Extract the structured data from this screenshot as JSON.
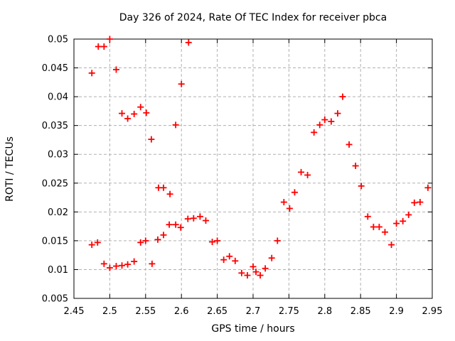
{
  "chart_data": {
    "type": "scatter",
    "title": "Day 326 of 2024, Rate Of TEC Index for receiver pbca",
    "xlabel": "GPS time / hours",
    "ylabel": "ROTI / TECUs",
    "xlim": [
      2.45,
      2.95
    ],
    "ylim": [
      0.005,
      0.05
    ],
    "grid": true,
    "legend": "none",
    "xticks": {
      "values": [
        2.45,
        2.5,
        2.55,
        2.6,
        2.65,
        2.7,
        2.75,
        2.8,
        2.85,
        2.9,
        2.95
      ],
      "labels": [
        "2.45",
        "2.5",
        "2.55",
        "2.6",
        "2.65",
        "2.7",
        "2.75",
        "2.8",
        "2.85",
        "2.9",
        "2.95"
      ]
    },
    "yticks": {
      "values": [
        0.005,
        0.01,
        0.015,
        0.02,
        0.025,
        0.03,
        0.035,
        0.04,
        0.045,
        0.05
      ],
      "labels": [
        "0.005",
        "0.01",
        "0.015",
        "0.02",
        "0.025",
        "0.03",
        "0.035",
        "0.04",
        "0.045",
        "0.05"
      ]
    },
    "marker": {
      "shape": "plus",
      "color": "#ff0000",
      "size": 9,
      "stroke_width": 1.8
    },
    "colors": {
      "grid": "#b0b0b0",
      "axis": "#000000",
      "background": "#ffffff",
      "text": "#000000"
    },
    "series": [
      {
        "name": "ROTI",
        "points": [
          [
            2.475,
            0.0441
          ],
          [
            2.475,
            0.0143
          ],
          [
            2.483,
            0.0147
          ],
          [
            2.484,
            0.0487
          ],
          [
            2.492,
            0.0487
          ],
          [
            2.492,
            0.011
          ],
          [
            2.5,
            0.05
          ],
          [
            2.5,
            0.0103
          ],
          [
            2.509,
            0.0447
          ],
          [
            2.509,
            0.0106
          ],
          [
            2.517,
            0.0371
          ],
          [
            2.517,
            0.0107
          ],
          [
            2.525,
            0.0362
          ],
          [
            2.525,
            0.0109
          ],
          [
            2.534,
            0.037
          ],
          [
            2.534,
            0.0114
          ],
          [
            2.543,
            0.0382
          ],
          [
            2.543,
            0.0147
          ],
          [
            2.55,
            0.015
          ],
          [
            2.551,
            0.0372
          ],
          [
            2.558,
            0.0326
          ],
          [
            2.559,
            0.011
          ],
          [
            2.567,
            0.0152
          ],
          [
            2.568,
            0.0242
          ],
          [
            2.575,
            0.016
          ],
          [
            2.575,
            0.0242
          ],
          [
            2.583,
            0.0178
          ],
          [
            2.584,
            0.0231
          ],
          [
            2.592,
            0.0351
          ],
          [
            2.592,
            0.0178
          ],
          [
            2.599,
            0.0173
          ],
          [
            2.6,
            0.0422
          ],
          [
            2.609,
            0.0188
          ],
          [
            2.61,
            0.0494
          ],
          [
            2.617,
            0.0189
          ],
          [
            2.626,
            0.0192
          ],
          [
            2.634,
            0.0185
          ],
          [
            2.643,
            0.0148
          ],
          [
            2.65,
            0.015
          ],
          [
            2.659,
            0.0117
          ],
          [
            2.667,
            0.0123
          ],
          [
            2.675,
            0.0115
          ],
          [
            2.684,
            0.0094
          ],
          [
            2.692,
            0.009
          ],
          [
            2.7,
            0.0105
          ],
          [
            2.704,
            0.0096
          ],
          [
            2.71,
            0.009
          ],
          [
            2.717,
            0.0102
          ],
          [
            2.726,
            0.012
          ],
          [
            2.734,
            0.015
          ],
          [
            2.743,
            0.0217
          ],
          [
            2.751,
            0.0206
          ],
          [
            2.758,
            0.0234
          ],
          [
            2.767,
            0.0269
          ],
          [
            2.776,
            0.0264
          ],
          [
            2.785,
            0.0338
          ],
          [
            2.793,
            0.0351
          ],
          [
            2.8,
            0.036
          ],
          [
            2.809,
            0.0357
          ],
          [
            2.818,
            0.0371
          ],
          [
            2.825,
            0.04
          ],
          [
            2.834,
            0.0317
          ],
          [
            2.843,
            0.028
          ],
          [
            2.851,
            0.0245
          ],
          [
            2.86,
            0.0192
          ],
          [
            2.868,
            0.0174
          ],
          [
            2.876,
            0.0174
          ],
          [
            2.884,
            0.0165
          ],
          [
            2.893,
            0.0143
          ],
          [
            2.9,
            0.018
          ],
          [
            2.909,
            0.0184
          ],
          [
            2.917,
            0.0195
          ],
          [
            2.925,
            0.0216
          ],
          [
            2.933,
            0.0217
          ],
          [
            2.944,
            0.0242
          ]
        ]
      }
    ]
  }
}
